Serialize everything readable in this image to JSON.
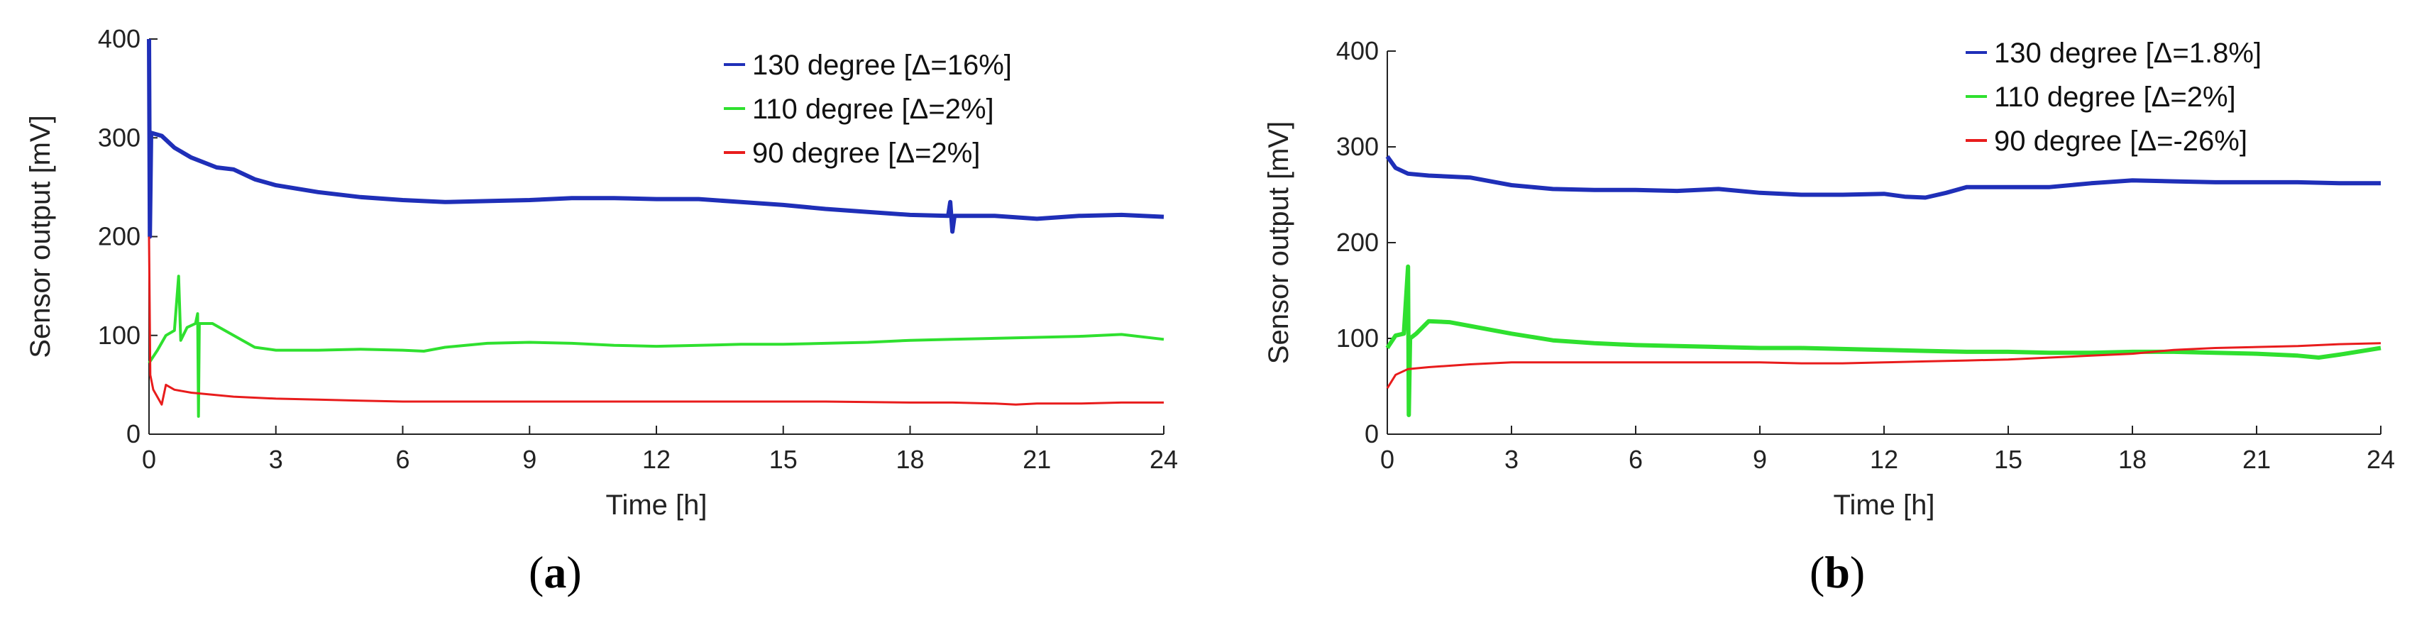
{
  "chart_data": [
    {
      "type": "line",
      "panel": "a",
      "caption_open": "(",
      "caption_letter": "a",
      "caption_close": ")",
      "xlabel": "Time [h]",
      "ylabel": "Sensor output [mV]",
      "xlim": [
        0,
        24
      ],
      "ylim": [
        0,
        400
      ],
      "xticks": [
        0,
        3,
        6,
        9,
        12,
        15,
        18,
        21,
        24
      ],
      "yticks": [
        0,
        100,
        200,
        300,
        400
      ],
      "legend_position": "top-right",
      "series": [
        {
          "name": "130 degree [Δ=16%]",
          "color": "#1f2fb8",
          "width": 6,
          "points": [
            [
              0,
              400
            ],
            [
              0.02,
              200
            ],
            [
              0.05,
              305
            ],
            [
              0.3,
              302
            ],
            [
              0.6,
              290
            ],
            [
              1,
              280
            ],
            [
              1.6,
              270
            ],
            [
              2,
              268
            ],
            [
              2.5,
              258
            ],
            [
              3,
              252
            ],
            [
              4,
              245
            ],
            [
              5,
              240
            ],
            [
              6,
              237
            ],
            [
              7,
              235
            ],
            [
              8,
              236
            ],
            [
              9,
              237
            ],
            [
              10,
              239
            ],
            [
              11,
              239
            ],
            [
              12,
              238
            ],
            [
              13,
              238
            ],
            [
              14,
              235
            ],
            [
              15,
              232
            ],
            [
              16,
              228
            ],
            [
              17,
              225
            ],
            [
              18,
              222
            ],
            [
              18.9,
              221
            ],
            [
              18.95,
              235
            ],
            [
              19,
              205
            ],
            [
              19.05,
              221
            ],
            [
              20,
              221
            ],
            [
              21,
              218
            ],
            [
              22,
              221
            ],
            [
              23,
              222
            ],
            [
              24,
              220
            ]
          ]
        },
        {
          "name": "110 degree [Δ=2%]",
          "color": "#2fe02f",
          "width": 4,
          "points": [
            [
              0,
              72
            ],
            [
              0.2,
              85
            ],
            [
              0.4,
              100
            ],
            [
              0.6,
              105
            ],
            [
              0.7,
              160
            ],
            [
              0.75,
              95
            ],
            [
              0.9,
              108
            ],
            [
              1.1,
              112
            ],
            [
              1.15,
              122
            ],
            [
              1.17,
              18
            ],
            [
              1.19,
              112
            ],
            [
              1.5,
              112
            ],
            [
              2,
              100
            ],
            [
              2.5,
              88
            ],
            [
              3,
              85
            ],
            [
              4,
              85
            ],
            [
              5,
              86
            ],
            [
              6,
              85
            ],
            [
              6.5,
              84
            ],
            [
              7,
              88
            ],
            [
              8,
              92
            ],
            [
              9,
              93
            ],
            [
              10,
              92
            ],
            [
              11,
              90
            ],
            [
              12,
              89
            ],
            [
              13,
              90
            ],
            [
              14,
              91
            ],
            [
              15,
              91
            ],
            [
              16,
              92
            ],
            [
              17,
              93
            ],
            [
              18,
              95
            ],
            [
              19,
              96
            ],
            [
              20,
              97
            ],
            [
              21,
              98
            ],
            [
              22,
              99
            ],
            [
              23,
              101
            ],
            [
              24,
              96
            ]
          ]
        },
        {
          "name": "90 degree [Δ=2%]",
          "color": "#e81c1c",
          "width": 3,
          "points": [
            [
              0,
              200
            ],
            [
              0.03,
              60
            ],
            [
              0.1,
              45
            ],
            [
              0.3,
              30
            ],
            [
              0.4,
              50
            ],
            [
              0.6,
              45
            ],
            [
              1,
              42
            ],
            [
              2,
              38
            ],
            [
              3,
              36
            ],
            [
              4,
              35
            ],
            [
              5,
              34
            ],
            [
              6,
              33
            ],
            [
              8,
              33
            ],
            [
              10,
              33
            ],
            [
              12,
              33
            ],
            [
              14,
              33
            ],
            [
              16,
              33
            ],
            [
              18,
              32
            ],
            [
              19,
              32
            ],
            [
              20,
              31
            ],
            [
              20.5,
              30
            ],
            [
              21,
              31
            ],
            [
              22,
              31
            ],
            [
              23,
              32
            ],
            [
              24,
              32
            ]
          ]
        }
      ]
    },
    {
      "type": "line",
      "panel": "b",
      "caption_open": "(",
      "caption_letter": "b",
      "caption_close": ")",
      "xlabel": "Time [h]",
      "ylabel": "Sensor output [mV]",
      "xlim": [
        0,
        24
      ],
      "ylim": [
        0,
        400
      ],
      "xticks": [
        0,
        3,
        6,
        9,
        12,
        15,
        18,
        21,
        24
      ],
      "yticks": [
        0,
        100,
        200,
        300,
        400
      ],
      "legend_position": "top-right",
      "series": [
        {
          "name": "130 degree [Δ=1.8%]",
          "color": "#1f2fb8",
          "width": 6,
          "points": [
            [
              0,
              290
            ],
            [
              0.2,
              278
            ],
            [
              0.5,
              272
            ],
            [
              1,
              270
            ],
            [
              2,
              268
            ],
            [
              3,
              260
            ],
            [
              4,
              256
            ],
            [
              5,
              255
            ],
            [
              6,
              255
            ],
            [
              7,
              254
            ],
            [
              8,
              256
            ],
            [
              9,
              252
            ],
            [
              10,
              250
            ],
            [
              11,
              250
            ],
            [
              12,
              251
            ],
            [
              12.5,
              248
            ],
            [
              13,
              247
            ],
            [
              13.5,
              252
            ],
            [
              14,
              258
            ],
            [
              15,
              258
            ],
            [
              16,
              258
            ],
            [
              17,
              262
            ],
            [
              18,
              265
            ],
            [
              19,
              264
            ],
            [
              20,
              263
            ],
            [
              21,
              263
            ],
            [
              22,
              263
            ],
            [
              23,
              262
            ],
            [
              24,
              262
            ]
          ]
        },
        {
          "name": "110 degree [Δ=2%]",
          "color": "#2fe02f",
          "width": 6,
          "points": [
            [
              0,
              90
            ],
            [
              0.2,
              103
            ],
            [
              0.4,
              105
            ],
            [
              0.5,
              175
            ],
            [
              0.52,
              20
            ],
            [
              0.55,
              100
            ],
            [
              0.7,
              105
            ],
            [
              1,
              118
            ],
            [
              1.5,
              117
            ],
            [
              2,
              113
            ],
            [
              3,
              105
            ],
            [
              4,
              98
            ],
            [
              5,
              95
            ],
            [
              6,
              93
            ],
            [
              7,
              92
            ],
            [
              8,
              91
            ],
            [
              9,
              90
            ],
            [
              10,
              90
            ],
            [
              11,
              89
            ],
            [
              12,
              88
            ],
            [
              13,
              87
            ],
            [
              14,
              86
            ],
            [
              15,
              86
            ],
            [
              16,
              85
            ],
            [
              17,
              85
            ],
            [
              18,
              86
            ],
            [
              19,
              86
            ],
            [
              20,
              85
            ],
            [
              21,
              84
            ],
            [
              22,
              82
            ],
            [
              22.5,
              80
            ],
            [
              23,
              83
            ],
            [
              24,
              90
            ]
          ]
        },
        {
          "name": "90 degree [Δ=-26%]",
          "color": "#e81c1c",
          "width": 3,
          "points": [
            [
              0,
              48
            ],
            [
              0.2,
              62
            ],
            [
              0.5,
              68
            ],
            [
              1,
              70
            ],
            [
              2,
              73
            ],
            [
              3,
              75
            ],
            [
              4,
              75
            ],
            [
              5,
              75
            ],
            [
              6,
              75
            ],
            [
              7,
              75
            ],
            [
              8,
              75
            ],
            [
              9,
              75
            ],
            [
              10,
              74
            ],
            [
              11,
              74
            ],
            [
              12,
              75
            ],
            [
              13,
              76
            ],
            [
              14,
              77
            ],
            [
              15,
              78
            ],
            [
              16,
              80
            ],
            [
              17,
              82
            ],
            [
              18,
              84
            ],
            [
              19,
              88
            ],
            [
              20,
              90
            ],
            [
              21,
              91
            ],
            [
              22,
              92
            ],
            [
              23,
              94
            ],
            [
              24,
              95
            ]
          ]
        }
      ]
    }
  ]
}
